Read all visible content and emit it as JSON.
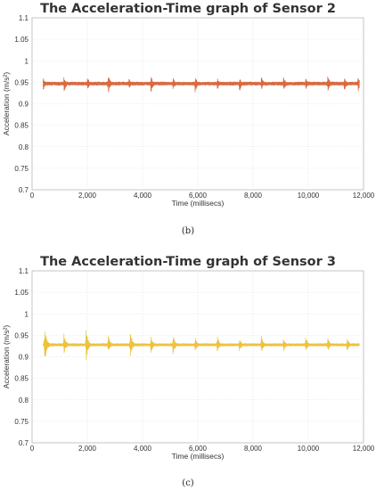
{
  "panels": [
    {
      "caption": "(b)",
      "chart_data": {
        "type": "line",
        "title": "The Acceleration-Time graph of Sensor 2",
        "xlabel": "Time (millisecs)",
        "ylabel": "Acceleration (m/s²)",
        "xlim": [
          0,
          12000
        ],
        "ylim": [
          0.7,
          1.1
        ],
        "xticks": [
          0,
          2000,
          4000,
          6000,
          8000,
          10000,
          12000
        ],
        "xtick_labels": [
          "0",
          "2,000",
          "4,000",
          "6,000",
          "8,000",
          "10,000",
          "12,000"
        ],
        "yticks": [
          0.7,
          0.75,
          0.8,
          0.85,
          0.9,
          0.95,
          1.0,
          1.05,
          1.1
        ],
        "ytick_labels": [
          "0.7",
          "0.75",
          "0.8",
          "0.85",
          "0.9",
          "0.95",
          "1",
          "1.05",
          "1.1"
        ],
        "grid": true,
        "series": [
          {
            "color": "#D9693F",
            "baseline": 0.947,
            "noise_amplitude": 0.004,
            "spikes": [
              {
                "x": 1150,
                "max": 0.963,
                "min": 0.925
              },
              {
                "x": 2750,
                "max": 0.97,
                "min": 0.92
              },
              {
                "x": 4300,
                "max": 0.967,
                "min": 0.922
              },
              {
                "x": 5900,
                "max": 0.965,
                "min": 0.924
              },
              {
                "x": 7500,
                "max": 0.963,
                "min": 0.925
              },
              {
                "x": 9100,
                "max": 0.965,
                "min": 0.925
              },
              {
                "x": 10700,
                "max": 0.966,
                "min": 0.924
              },
              {
                "x": 11300,
                "max": 0.964,
                "min": 0.926
              },
              {
                "x": 11800,
                "max": 0.964,
                "min": 0.925
              },
              {
                "x": 400,
                "max": 0.962,
                "min": 0.93
              },
              {
                "x": 2000,
                "max": 0.964,
                "min": 0.931
              },
              {
                "x": 3500,
                "max": 0.962,
                "min": 0.932
              },
              {
                "x": 5100,
                "max": 0.963,
                "min": 0.931
              },
              {
                "x": 6700,
                "max": 0.963,
                "min": 0.931
              },
              {
                "x": 8300,
                "max": 0.963,
                "min": 0.931
              },
              {
                "x": 9900,
                "max": 0.963,
                "min": 0.931
              }
            ]
          }
        ]
      }
    },
    {
      "caption": "(c)",
      "chart_data": {
        "type": "line",
        "title": "The Acceleration-Time graph of Sensor 3",
        "xlabel": "Time (millisecs)",
        "ylabel": "Acceleration (m/s²)",
        "xlim": [
          0,
          12000
        ],
        "ylim": [
          0.7,
          1.1
        ],
        "xticks": [
          0,
          2000,
          4000,
          6000,
          8000,
          10000,
          12000
        ],
        "xtick_labels": [
          "0",
          "2,000",
          "4,000",
          "6,000",
          "8,000",
          "10,000",
          "12,000"
        ],
        "yticks": [
          0.7,
          0.75,
          0.8,
          0.85,
          0.9,
          0.95,
          1.0,
          1.05,
          1.1
        ],
        "ytick_labels": [
          "0.7",
          "0.75",
          "0.8",
          "0.85",
          "0.9",
          "0.95",
          "1",
          "1.05",
          "1.1"
        ],
        "grid": true,
        "series": [
          {
            "color": "#EDC23E",
            "baseline": 0.928,
            "noise_amplitude": 0.003,
            "spikes": [
              {
                "x": 450,
                "max": 0.975,
                "min": 0.88
              },
              {
                "x": 1150,
                "max": 0.955,
                "min": 0.903
              },
              {
                "x": 1950,
                "max": 0.968,
                "min": 0.885
              },
              {
                "x": 2750,
                "max": 0.955,
                "min": 0.905
              },
              {
                "x": 3550,
                "max": 0.965,
                "min": 0.895
              },
              {
                "x": 4300,
                "max": 0.95,
                "min": 0.908
              },
              {
                "x": 5100,
                "max": 0.955,
                "min": 0.903
              },
              {
                "x": 5900,
                "max": 0.947,
                "min": 0.91
              },
              {
                "x": 6700,
                "max": 0.952,
                "min": 0.905
              },
              {
                "x": 7500,
                "max": 0.946,
                "min": 0.91
              },
              {
                "x": 8300,
                "max": 0.95,
                "min": 0.907
              },
              {
                "x": 9100,
                "max": 0.945,
                "min": 0.911
              },
              {
                "x": 9900,
                "max": 0.95,
                "min": 0.908
              },
              {
                "x": 10700,
                "max": 0.948,
                "min": 0.91
              },
              {
                "x": 11400,
                "max": 0.946,
                "min": 0.911
              }
            ]
          }
        ]
      }
    }
  ]
}
